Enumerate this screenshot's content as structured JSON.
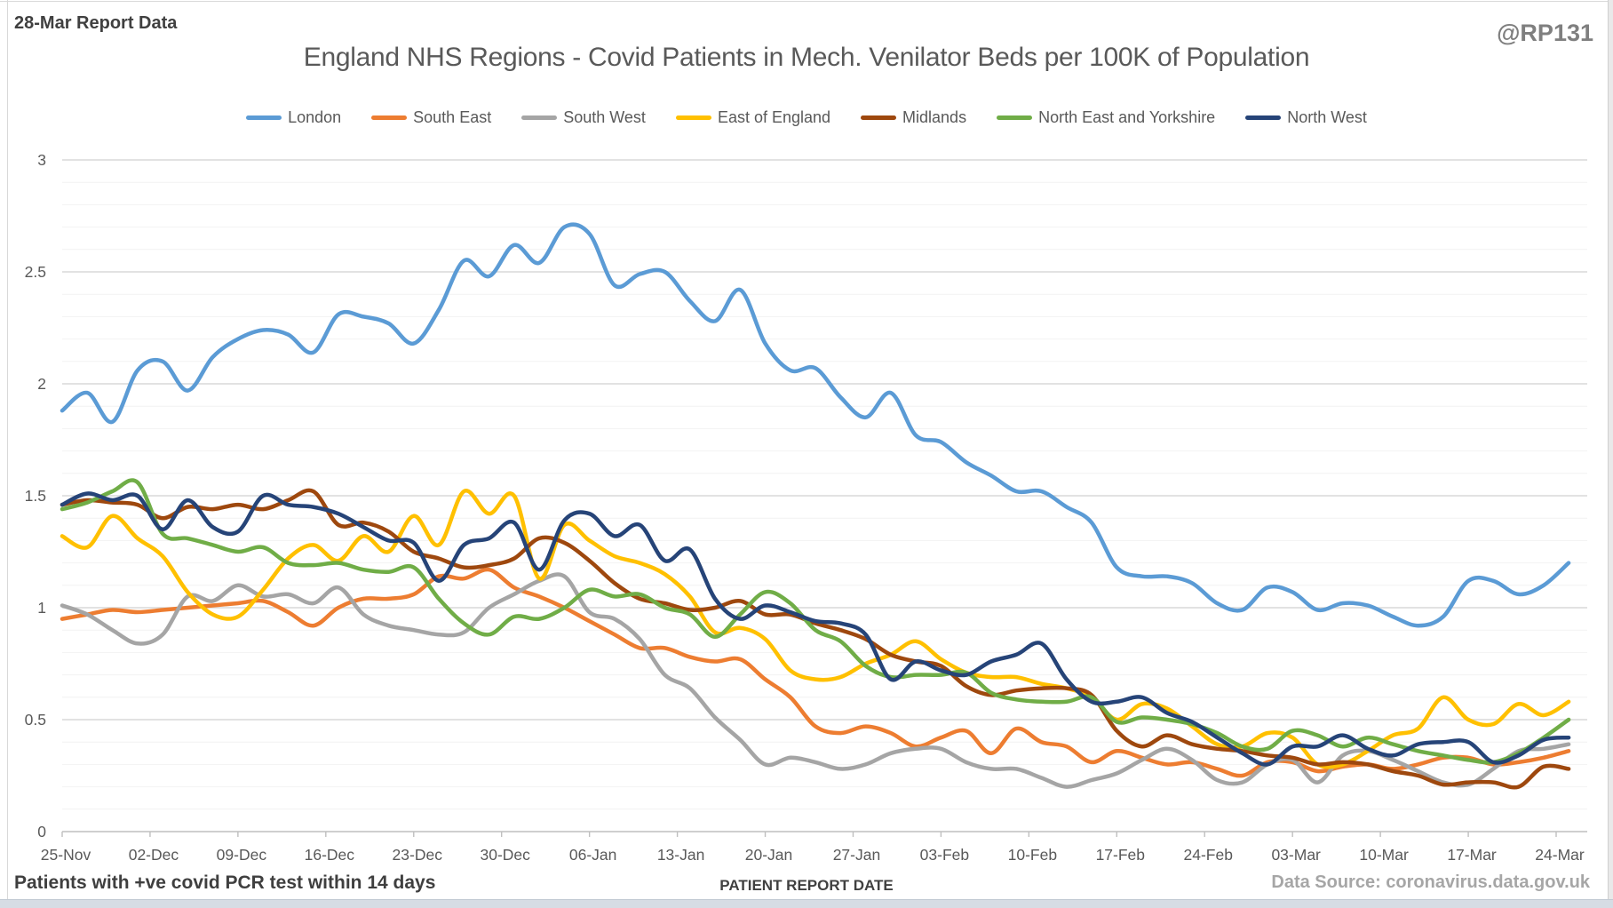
{
  "header": {
    "report_label": "28-Mar Report Data",
    "handle": "@RP131"
  },
  "chart_data": {
    "type": "line",
    "title": "England NHS Regions - Covid Patients in Mech. Venilator Beds per 100K of Population",
    "xlabel": "PATIENT REPORT DATE",
    "footnote_left": "Patients with +ve covid PCR test within 14 days",
    "source": "Data Source: coronavirus.data.gov.uk",
    "legend_position": "top",
    "grid": "horizontal",
    "ylim": [
      0,
      3
    ],
    "y_major_ticks": [
      0,
      0.5,
      1,
      1.5,
      2,
      2.5,
      3
    ],
    "y_minor_step": 0.1,
    "x_tick_labels": [
      "25-Nov",
      "02-Dec",
      "09-Dec",
      "16-Dec",
      "23-Dec",
      "30-Dec",
      "06-Jan",
      "13-Jan",
      "20-Jan",
      "27-Jan",
      "03-Feb",
      "10-Feb",
      "17-Feb",
      "24-Feb",
      "03-Mar",
      "10-Mar",
      "17-Mar",
      "24-Mar"
    ],
    "x_tick_days": [
      0,
      7,
      14,
      21,
      28,
      35,
      42,
      49,
      56,
      63,
      70,
      77,
      84,
      91,
      98,
      105,
      112,
      119
    ],
    "sample_step_days": 2,
    "total_days": 120,
    "axis_colors": {
      "grid_minor": "#f2f2f2",
      "grid_major": "#d9d9d9",
      "axis_line": "#bfbfbf",
      "tick_text": "#595959"
    },
    "series": [
      {
        "name": "London",
        "color": "#5B9BD5",
        "values": [
          1.88,
          1.96,
          1.83,
          2.06,
          2.1,
          1.97,
          2.12,
          2.2,
          2.24,
          2.22,
          2.14,
          2.31,
          2.3,
          2.27,
          2.18,
          2.33,
          2.55,
          2.48,
          2.62,
          2.54,
          2.7,
          2.67,
          2.44,
          2.49,
          2.5,
          2.37,
          2.28,
          2.42,
          2.18,
          2.06,
          2.07,
          1.94,
          1.85,
          1.96,
          1.77,
          1.74,
          1.65,
          1.59,
          1.52,
          1.52,
          1.45,
          1.38,
          1.18,
          1.14,
          1.14,
          1.11,
          1.02,
          0.99,
          1.09,
          1.07,
          0.99,
          1.02,
          1.01,
          0.96,
          0.92,
          0.96,
          1.12,
          1.12,
          1.06,
          1.1,
          1.2
        ]
      },
      {
        "name": "South East",
        "color": "#ED7D31",
        "values": [
          0.95,
          0.97,
          0.99,
          0.98,
          0.99,
          1.0,
          1.01,
          1.02,
          1.03,
          0.98,
          0.92,
          1.0,
          1.04,
          1.04,
          1.06,
          1.14,
          1.13,
          1.17,
          1.09,
          1.05,
          1.0,
          0.94,
          0.88,
          0.82,
          0.82,
          0.78,
          0.76,
          0.77,
          0.68,
          0.6,
          0.47,
          0.44,
          0.47,
          0.44,
          0.38,
          0.42,
          0.45,
          0.35,
          0.46,
          0.4,
          0.38,
          0.31,
          0.36,
          0.33,
          0.3,
          0.31,
          0.28,
          0.25,
          0.31,
          0.31,
          0.27,
          0.29,
          0.3,
          0.28,
          0.3,
          0.33,
          0.33,
          0.3,
          0.31,
          0.33,
          0.36
        ]
      },
      {
        "name": "South West",
        "color": "#A5A5A5",
        "values": [
          1.01,
          0.97,
          0.9,
          0.84,
          0.88,
          1.05,
          1.03,
          1.1,
          1.05,
          1.06,
          1.02,
          1.09,
          0.97,
          0.92,
          0.9,
          0.88,
          0.89,
          1.0,
          1.06,
          1.12,
          1.14,
          0.98,
          0.95,
          0.86,
          0.7,
          0.64,
          0.51,
          0.41,
          0.3,
          0.33,
          0.31,
          0.28,
          0.3,
          0.35,
          0.37,
          0.37,
          0.31,
          0.28,
          0.28,
          0.24,
          0.2,
          0.23,
          0.26,
          0.32,
          0.37,
          0.32,
          0.23,
          0.22,
          0.3,
          0.32,
          0.22,
          0.34,
          0.36,
          0.32,
          0.27,
          0.22,
          0.21,
          0.28,
          0.36,
          0.37,
          0.39
        ]
      },
      {
        "name": "East of England",
        "color": "#FFC000",
        "values": [
          1.32,
          1.27,
          1.41,
          1.31,
          1.23,
          1.07,
          0.97,
          0.96,
          1.08,
          1.22,
          1.28,
          1.21,
          1.32,
          1.25,
          1.41,
          1.28,
          1.52,
          1.42,
          1.5,
          1.13,
          1.37,
          1.3,
          1.23,
          1.2,
          1.15,
          1.05,
          0.89,
          0.91,
          0.86,
          0.72,
          0.68,
          0.69,
          0.75,
          0.79,
          0.85,
          0.77,
          0.71,
          0.69,
          0.69,
          0.66,
          0.64,
          0.6,
          0.5,
          0.57,
          0.55,
          0.47,
          0.39,
          0.38,
          0.44,
          0.42,
          0.3,
          0.3,
          0.36,
          0.43,
          0.46,
          0.6,
          0.5,
          0.48,
          0.57,
          0.52,
          0.58
        ]
      },
      {
        "name": "Midlands",
        "color": "#9E480E",
        "values": [
          1.46,
          1.48,
          1.47,
          1.46,
          1.4,
          1.45,
          1.44,
          1.46,
          1.44,
          1.48,
          1.52,
          1.37,
          1.38,
          1.34,
          1.25,
          1.22,
          1.18,
          1.19,
          1.22,
          1.31,
          1.29,
          1.21,
          1.11,
          1.04,
          1.02,
          0.99,
          1.0,
          1.03,
          0.97,
          0.97,
          0.93,
          0.9,
          0.86,
          0.79,
          0.76,
          0.74,
          0.65,
          0.61,
          0.63,
          0.64,
          0.64,
          0.61,
          0.45,
          0.38,
          0.43,
          0.39,
          0.37,
          0.36,
          0.34,
          0.33,
          0.3,
          0.31,
          0.3,
          0.27,
          0.25,
          0.21,
          0.22,
          0.22,
          0.2,
          0.29,
          0.28
        ]
      },
      {
        "name": "North East and Yorkshire",
        "color": "#70AD47",
        "values": [
          1.44,
          1.47,
          1.52,
          1.56,
          1.33,
          1.31,
          1.28,
          1.25,
          1.27,
          1.2,
          1.19,
          1.2,
          1.17,
          1.16,
          1.18,
          1.04,
          0.93,
          0.88,
          0.96,
          0.95,
          1.0,
          1.08,
          1.05,
          1.06,
          1.0,
          0.97,
          0.87,
          0.97,
          1.07,
          1.02,
          0.9,
          0.85,
          0.74,
          0.69,
          0.7,
          0.7,
          0.71,
          0.62,
          0.59,
          0.58,
          0.58,
          0.6,
          0.49,
          0.51,
          0.5,
          0.48,
          0.44,
          0.38,
          0.37,
          0.45,
          0.43,
          0.38,
          0.42,
          0.39,
          0.36,
          0.34,
          0.32,
          0.31,
          0.35,
          0.42,
          0.5
        ]
      },
      {
        "name": "North West",
        "color": "#264478",
        "values": [
          1.46,
          1.51,
          1.48,
          1.5,
          1.35,
          1.48,
          1.36,
          1.34,
          1.5,
          1.46,
          1.45,
          1.42,
          1.36,
          1.3,
          1.29,
          1.12,
          1.28,
          1.31,
          1.38,
          1.17,
          1.39,
          1.42,
          1.32,
          1.37,
          1.21,
          1.26,
          1.04,
          0.95,
          1.01,
          0.98,
          0.94,
          0.93,
          0.88,
          0.68,
          0.76,
          0.72,
          0.7,
          0.76,
          0.79,
          0.84,
          0.68,
          0.58,
          0.58,
          0.6,
          0.53,
          0.49,
          0.42,
          0.35,
          0.3,
          0.38,
          0.38,
          0.43,
          0.37,
          0.34,
          0.39,
          0.4,
          0.4,
          0.31,
          0.34,
          0.41,
          0.42
        ]
      }
    ]
  }
}
